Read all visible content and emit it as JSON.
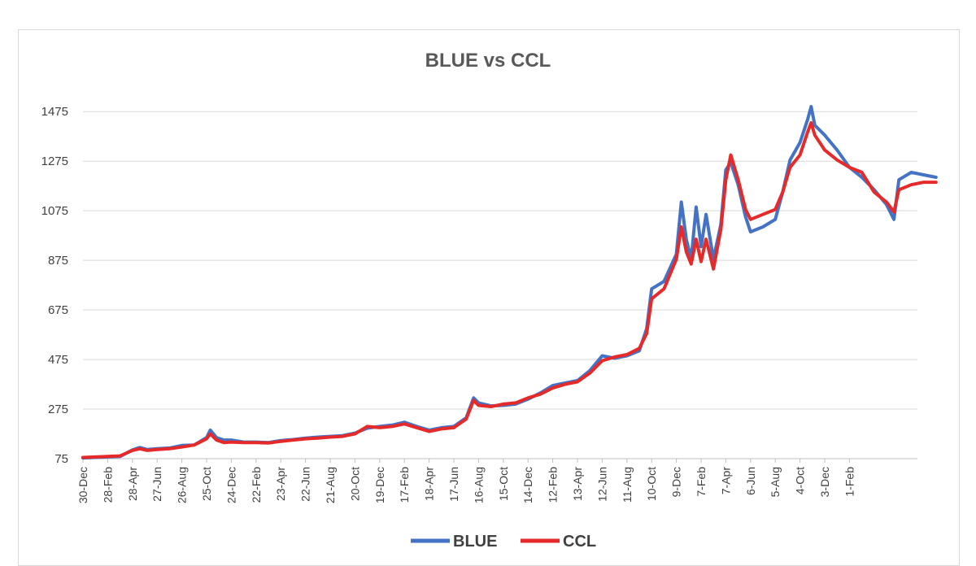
{
  "chart_data": {
    "type": "line",
    "title": "BLUE vs CCL",
    "xlabel": "",
    "ylabel": "",
    "ylim": [
      75,
      1525
    ],
    "y_ticks": [
      75,
      275,
      475,
      675,
      875,
      1075,
      1275,
      1475
    ],
    "grid": true,
    "legend_position": "bottom",
    "categories": [
      "30-Dec",
      "28-Feb",
      "28-Apr",
      "27-Jun",
      "26-Aug",
      "25-Oct",
      "24-Dec",
      "22-Feb",
      "23-Apr",
      "22-Jun",
      "21-Aug",
      "20-Oct",
      "19-Dec",
      "17-Feb",
      "18-Apr",
      "17-Jun",
      "16-Aug",
      "15-Oct",
      "14-Dec",
      "12-Feb",
      "13-Apr",
      "12-Jun",
      "11-Aug",
      "10-Oct",
      "9-Dec",
      "7-Feb",
      "7-Apr",
      "6-Jun",
      "5-Aug",
      "4-Oct",
      "3-Dec",
      "1-Feb"
    ],
    "series": [
      {
        "name": "BLUE",
        "color": "#4472C4",
        "points": [
          [
            0,
            78
          ],
          [
            0.5,
            80
          ],
          [
            1,
            82
          ],
          [
            1.5,
            84
          ],
          [
            2,
            110
          ],
          [
            2.3,
            120
          ],
          [
            2.6,
            112
          ],
          [
            3,
            115
          ],
          [
            3.5,
            118
          ],
          [
            4,
            128
          ],
          [
            4.5,
            130
          ],
          [
            5,
            160
          ],
          [
            5.15,
            190
          ],
          [
            5.4,
            160
          ],
          [
            5.7,
            150
          ],
          [
            6,
            150
          ],
          [
            6.5,
            142
          ],
          [
            7,
            142
          ],
          [
            7.5,
            140
          ],
          [
            8,
            148
          ],
          [
            8.5,
            152
          ],
          [
            9,
            158
          ],
          [
            9.5,
            162
          ],
          [
            10,
            165
          ],
          [
            10.5,
            168
          ],
          [
            11,
            178
          ],
          [
            11.5,
            198
          ],
          [
            12,
            205
          ],
          [
            12.5,
            210
          ],
          [
            13,
            222
          ],
          [
            13.5,
            205
          ],
          [
            14,
            190
          ],
          [
            14.5,
            200
          ],
          [
            15,
            205
          ],
          [
            15.5,
            240
          ],
          [
            15.8,
            320
          ],
          [
            16,
            300
          ],
          [
            16.5,
            288
          ],
          [
            17,
            290
          ],
          [
            17.5,
            295
          ],
          [
            18,
            315
          ],
          [
            18.5,
            340
          ],
          [
            19,
            370
          ],
          [
            19.5,
            380
          ],
          [
            20,
            390
          ],
          [
            20.5,
            430
          ],
          [
            21,
            490
          ],
          [
            21.5,
            480
          ],
          [
            22,
            490
          ],
          [
            22.5,
            510
          ],
          [
            22.8,
            600
          ],
          [
            23,
            760
          ],
          [
            23.5,
            790
          ],
          [
            24,
            900
          ],
          [
            24.2,
            1110
          ],
          [
            24.4,
            960
          ],
          [
            24.6,
            880
          ],
          [
            24.8,
            1090
          ],
          [
            25,
            930
          ],
          [
            25.2,
            1060
          ],
          [
            25.5,
            880
          ],
          [
            25.8,
            1020
          ],
          [
            26,
            1240
          ],
          [
            26.2,
            1270
          ],
          [
            26.5,
            1180
          ],
          [
            26.8,
            1050
          ],
          [
            27,
            990
          ],
          [
            27.5,
            1010
          ],
          [
            28,
            1040
          ],
          [
            28.3,
            1150
          ],
          [
            28.6,
            1280
          ],
          [
            29,
            1350
          ],
          [
            29.3,
            1440
          ],
          [
            29.45,
            1495
          ],
          [
            29.6,
            1420
          ],
          [
            30,
            1380
          ],
          [
            30.5,
            1320
          ],
          [
            31,
            1250
          ],
          [
            31.5,
            1210
          ],
          [
            32,
            1160
          ],
          [
            32.5,
            1100
          ],
          [
            32.8,
            1040
          ],
          [
            33,
            1200
          ],
          [
            33.5,
            1230
          ],
          [
            34,
            1220
          ],
          [
            34.5,
            1210
          ]
        ]
      },
      {
        "name": "CCL",
        "color": "#E62A2A",
        "points": [
          [
            0,
            80
          ],
          [
            0.5,
            82
          ],
          [
            1,
            84
          ],
          [
            1.5,
            86
          ],
          [
            2,
            108
          ],
          [
            2.3,
            115
          ],
          [
            2.6,
            108
          ],
          [
            3,
            112
          ],
          [
            3.5,
            115
          ],
          [
            4,
            122
          ],
          [
            4.5,
            130
          ],
          [
            5,
            155
          ],
          [
            5.15,
            175
          ],
          [
            5.4,
            150
          ],
          [
            5.7,
            140
          ],
          [
            6,
            142
          ],
          [
            6.5,
            140
          ],
          [
            7,
            140
          ],
          [
            7.5,
            138
          ],
          [
            8,
            145
          ],
          [
            8.5,
            150
          ],
          [
            9,
            155
          ],
          [
            9.5,
            158
          ],
          [
            10,
            162
          ],
          [
            10.5,
            165
          ],
          [
            11,
            175
          ],
          [
            11.5,
            205
          ],
          [
            12,
            200
          ],
          [
            12.5,
            205
          ],
          [
            13,
            215
          ],
          [
            13.5,
            200
          ],
          [
            14,
            185
          ],
          [
            14.5,
            195
          ],
          [
            15,
            200
          ],
          [
            15.5,
            235
          ],
          [
            15.8,
            310
          ],
          [
            16,
            290
          ],
          [
            16.5,
            285
          ],
          [
            17,
            295
          ],
          [
            17.5,
            300
          ],
          [
            18,
            320
          ],
          [
            18.5,
            335
          ],
          [
            19,
            360
          ],
          [
            19.5,
            375
          ],
          [
            20,
            385
          ],
          [
            20.5,
            420
          ],
          [
            21,
            470
          ],
          [
            21.5,
            485
          ],
          [
            22,
            495
          ],
          [
            22.5,
            520
          ],
          [
            22.8,
            580
          ],
          [
            23,
            720
          ],
          [
            23.5,
            760
          ],
          [
            24,
            880
          ],
          [
            24.2,
            1010
          ],
          [
            24.4,
            910
          ],
          [
            24.6,
            860
          ],
          [
            24.8,
            960
          ],
          [
            25,
            870
          ],
          [
            25.2,
            960
          ],
          [
            25.5,
            840
          ],
          [
            25.8,
            1000
          ],
          [
            26,
            1200
          ],
          [
            26.2,
            1300
          ],
          [
            26.5,
            1200
          ],
          [
            26.8,
            1080
          ],
          [
            27,
            1040
          ],
          [
            27.5,
            1060
          ],
          [
            28,
            1080
          ],
          [
            28.3,
            1150
          ],
          [
            28.6,
            1250
          ],
          [
            29,
            1300
          ],
          [
            29.3,
            1390
          ],
          [
            29.45,
            1430
          ],
          [
            29.6,
            1380
          ],
          [
            30,
            1320
          ],
          [
            30.5,
            1280
          ],
          [
            31,
            1250
          ],
          [
            31.5,
            1230
          ],
          [
            32,
            1150
          ],
          [
            32.5,
            1110
          ],
          [
            32.8,
            1070
          ],
          [
            33,
            1160
          ],
          [
            33.5,
            1180
          ],
          [
            34,
            1190
          ],
          [
            34.5,
            1190
          ]
        ]
      }
    ]
  }
}
